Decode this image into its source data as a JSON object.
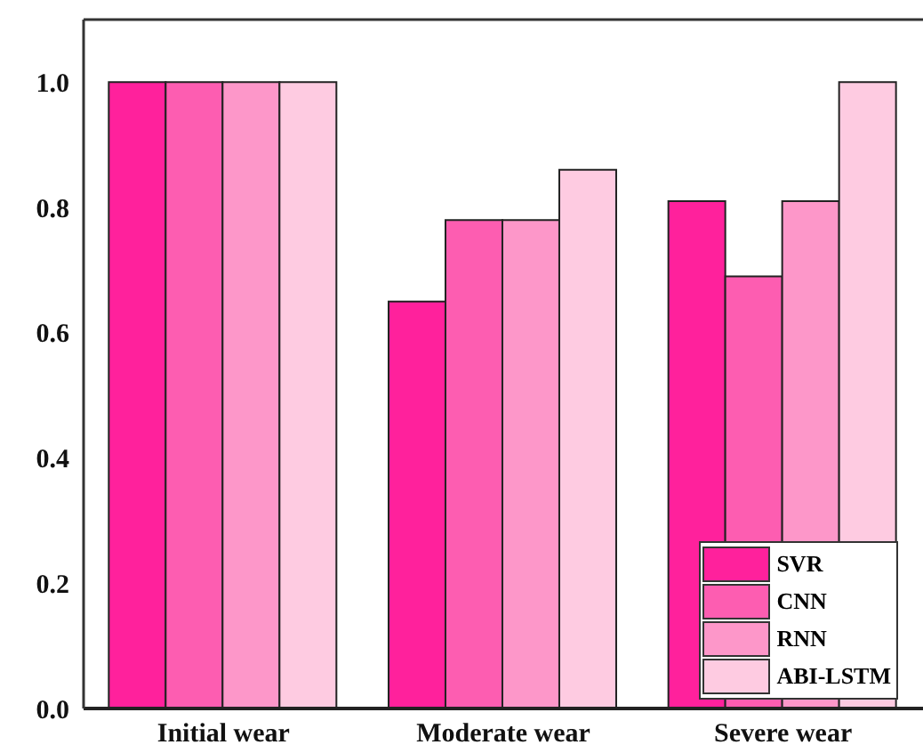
{
  "chart_data": {
    "type": "bar",
    "categories": [
      "Initial wear",
      "Moderate wear",
      "Severe wear"
    ],
    "series": [
      {
        "name": "SVR",
        "color": "#ff219c",
        "values": [
          1.0,
          0.65,
          0.81
        ]
      },
      {
        "name": "CNN",
        "color": "#fd5db1",
        "values": [
          1.0,
          0.78,
          0.69
        ]
      },
      {
        "name": "RNN",
        "color": "#fd97c9",
        "values": [
          1.0,
          0.78,
          0.81
        ]
      },
      {
        "name": "ABI-LSTM",
        "color": "#fecbe1",
        "values": [
          1.0,
          0.86,
          1.0
        ]
      }
    ],
    "ylim": [
      0,
      1.1
    ],
    "yticks": [
      {
        "value": 0,
        "label": "0.0"
      },
      {
        "value": 0.2,
        "label": "0.2"
      },
      {
        "value": 0.4,
        "label": "0.4"
      },
      {
        "value": 0.6,
        "label": "0.6"
      },
      {
        "value": 0.8,
        "label": "0.8"
      },
      {
        "value": 1,
        "label": "1.0"
      }
    ],
    "grid": false,
    "legend": "bottom right"
  }
}
